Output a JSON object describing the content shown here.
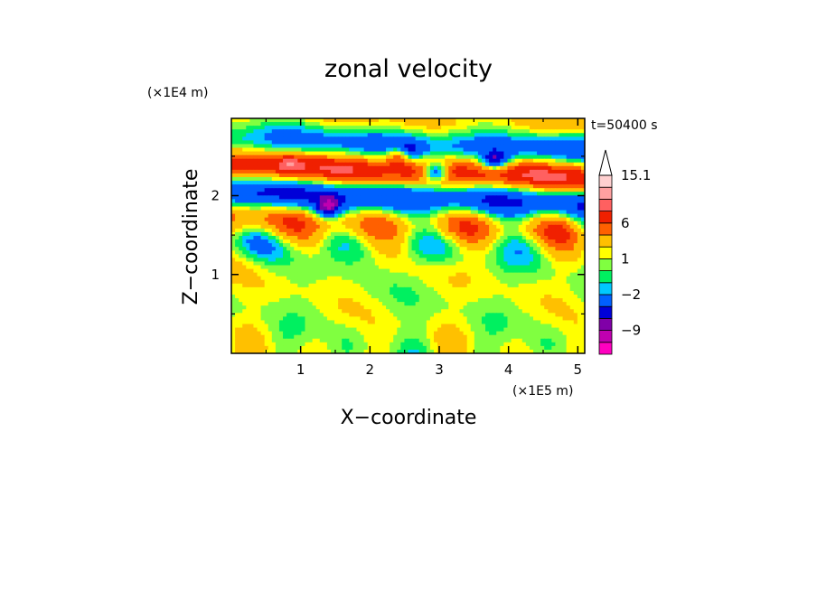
{
  "chart_data": {
    "type": "heatmap",
    "title": "zonal velocity",
    "time_label": "t=50400 s",
    "xlabel": "X−coordinate",
    "ylabel": "Z−coordinate",
    "x_unit": "(×1E5 m)",
    "y_unit": "(×1E4 m)",
    "xlim": [
      0.0,
      5.1
    ],
    "ylim": [
      0.0,
      2.98
    ],
    "x_ticks": [
      1,
      2,
      3,
      4,
      5
    ],
    "x_tick_labels": [
      "1",
      "2",
      "3",
      "4",
      "5"
    ],
    "y_ticks": [
      1,
      2
    ],
    "y_tick_labels": [
      "1",
      "2"
    ],
    "colorbar": {
      "levels": [
        -12,
        -9,
        -7,
        -5,
        -2,
        -1,
        0,
        1,
        2,
        4,
        6,
        8,
        10,
        13,
        15.1
      ],
      "colors": [
        "#ff00c0",
        "#c000b0",
        "#8000a8",
        "#0000d8",
        "#0060ff",
        "#00c8ff",
        "#00f060",
        "#80ff40",
        "#ffff00",
        "#ffc000",
        "#ff6000",
        "#f02000",
        "#ff6060",
        "#ffa0a0",
        "#ffd0d0"
      ],
      "labels": [
        {
          "value": 15.1,
          "text": "15.1"
        },
        {
          "value": 6,
          "text": "6"
        },
        {
          "value": 1,
          "text": "1"
        },
        {
          "value": -2,
          "text": "−2"
        },
        {
          "value": -9,
          "text": "−9"
        }
      ],
      "top_arrow_color": "#ffffff"
    },
    "field_features": [
      {
        "name": "band-lower",
        "x": [
          0.0,
          5.1
        ],
        "z": [
          0.5,
          1.7
        ],
        "value": 2
      },
      {
        "name": "band-upper",
        "x": [
          0.5,
          5.1
        ],
        "z": [
          2.0,
          2.6
        ],
        "value": 4
      },
      {
        "name": "min-1",
        "x": 1.4,
        "z": 1.85,
        "value": -9
      },
      {
        "name": "min-2",
        "x": 2.55,
        "z": 2.55,
        "value": -9
      },
      {
        "name": "min-3",
        "x": 2.95,
        "z": 2.3,
        "value": -9
      },
      {
        "name": "min-4",
        "x": 3.8,
        "z": 2.45,
        "value": -9
      },
      {
        "name": "max-1",
        "x": 2.45,
        "z": 2.5,
        "value": 8
      },
      {
        "name": "max-2",
        "x": 0.85,
        "z": 2.4,
        "value": 6
      }
    ]
  }
}
